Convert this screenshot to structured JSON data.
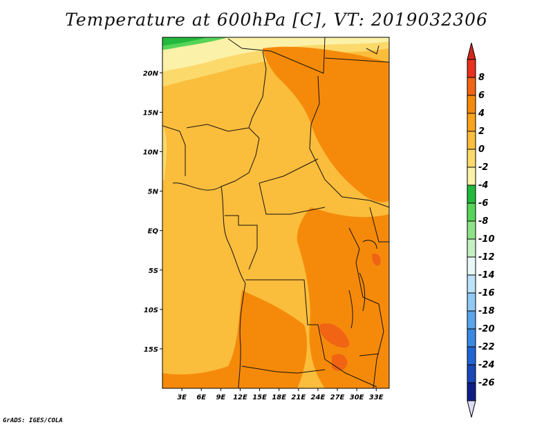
{
  "title": "Temperature at 600hPa [C], VT: 2019032306",
  "credit": "GrADS: IGES/COLA",
  "map": {
    "lat_labels": [
      {
        "label": "20N",
        "lat": 20
      },
      {
        "label": "15N",
        "lat": 15
      },
      {
        "label": "10N",
        "lat": 10
      },
      {
        "label": "5N",
        "lat": 5
      },
      {
        "label": "EQ",
        "lat": 0
      },
      {
        "label": "5S",
        "lat": -5
      },
      {
        "label": "10S",
        "lat": -10
      },
      {
        "label": "15S",
        "lat": -15
      }
    ],
    "lon_labels": [
      {
        "label": "3E",
        "lon": 3
      },
      {
        "label": "6E",
        "lon": 6
      },
      {
        "label": "9E",
        "lon": 9
      },
      {
        "label": "12E",
        "lon": 12
      },
      {
        "label": "15E",
        "lon": 15
      },
      {
        "label": "18E",
        "lon": 18
      },
      {
        "label": "21E",
        "lon": 21
      },
      {
        "label": "24E",
        "lon": 24
      },
      {
        "label": "27E",
        "lon": 27
      },
      {
        "label": "30E",
        "lon": 30
      },
      {
        "label": "33E",
        "lon": 33
      }
    ],
    "lat_range": [
      -20,
      24.5
    ],
    "lon_range": [
      0,
      35
    ]
  },
  "colorbar": {
    "levels": [
      "8",
      "6",
      "4",
      "2",
      "0",
      "-2",
      "-4",
      "-6",
      "-8",
      "-10",
      "-12",
      "-14",
      "-16",
      "-18",
      "-20",
      "-22",
      "-24",
      "-26"
    ],
    "colors": [
      "#e8301e",
      "#f06414",
      "#f58a0a",
      "#fba31c",
      "#fbbd3c",
      "#fbd96b",
      "#fcf1a8",
      "#22b93c",
      "#56d458",
      "#8ee388",
      "#c4f1c2",
      "#e8f8f8",
      "#bbe2f8",
      "#90c9f3",
      "#5aa5ea",
      "#3a89e2",
      "#1f64d4",
      "#1947b8",
      "#0d1f86"
    ],
    "top_arrow_color": "#d3261c",
    "bottom_arrow_color": "#dcdcf4"
  }
}
